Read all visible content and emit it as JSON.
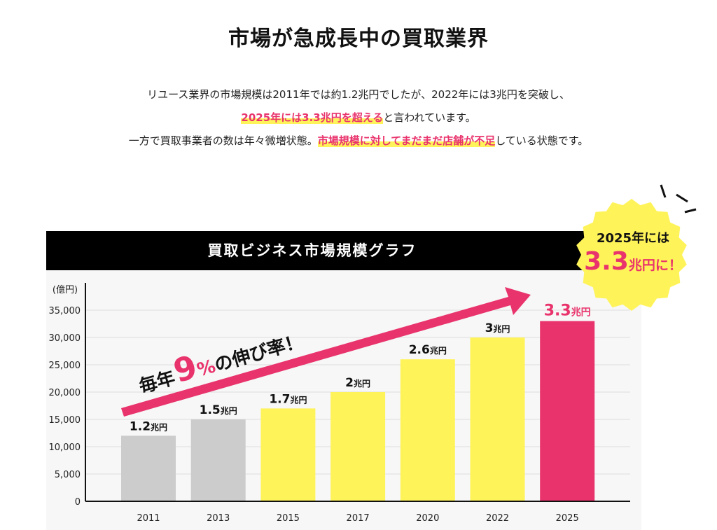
{
  "page": {
    "title": "市場が急成長中の買取業界",
    "intro_line1": "リユース業界の市場規模は2011年では約1.2兆円でしたが、2022年には3兆円を突破し、",
    "intro_line2_highlight": "2025年には3.3兆円を超える",
    "intro_line2_rest": "と言われています。",
    "intro_line3_start": "一方で買取事業者の数は年々微増状態。",
    "intro_line3_highlight": "市場規模に対してまだまだ店舗が不足",
    "intro_line3_end": "している状態です。"
  },
  "badge": {
    "line1": "2025年には",
    "big": "3.3",
    "suffix": "兆円に！"
  },
  "growth": {
    "prefix": "毎年",
    "number": "9",
    "percent": "%",
    "suffix": "の伸び率！"
  },
  "colors": {
    "gray": "#cccccc",
    "yellow": "#fff35a",
    "pink": "#e9336c",
    "badge": "#fff35a"
  },
  "chart_data": {
    "type": "bar",
    "title": "買取ビジネス市場規模グラフ",
    "ylabel": "(億円)",
    "ylim": [
      0,
      35000
    ],
    "yticks": [
      "0",
      "5,000",
      "10,000",
      "15,000",
      "20,000",
      "25,000",
      "30,000",
      "35,000"
    ],
    "categories": [
      "2011",
      "2013",
      "2015",
      "2017",
      "2020",
      "2022",
      "2025"
    ],
    "values": [
      12000,
      15000,
      17000,
      20000,
      26000,
      30000,
      33000
    ],
    "value_labels": [
      {
        "num": "1.2",
        "unit": "兆円"
      },
      {
        "num": "1.5",
        "unit": "兆円"
      },
      {
        "num": "1.7",
        "unit": "兆円"
      },
      {
        "num": "2",
        "unit": "兆円"
      },
      {
        "num": "2.6",
        "unit": "兆円"
      },
      {
        "num": "3",
        "unit": "兆円"
      },
      {
        "num": "3.3",
        "unit": "兆円"
      }
    ],
    "bar_colors": [
      "gray",
      "gray",
      "yellow",
      "yellow",
      "yellow",
      "yellow",
      "pink"
    ],
    "grid": true,
    "legend": "none"
  }
}
